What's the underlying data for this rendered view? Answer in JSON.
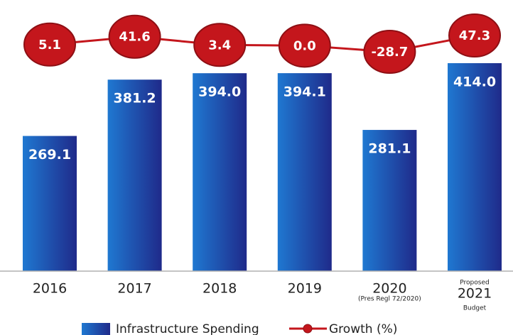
{
  "chart_data": {
    "type": "bar-line",
    "categories": [
      "2016",
      "2017",
      "2018",
      "2019",
      "2020",
      "2021"
    ],
    "annotations": [
      "(Pres Regl 72/2020)",
      "Proposed",
      "Budget"
    ],
    "series": [
      {
        "name": "Infrastructure Spending",
        "type": "bar",
        "color": "#1a4fb0",
        "values": [
          269.1,
          381.2,
          394.0,
          394.1,
          281.1,
          414.0
        ],
        "value_labels": [
          "269.1",
          "381.2",
          "394.0",
          "394.1",
          "281.1",
          "414.0"
        ]
      },
      {
        "name": "Growth (%)",
        "type": "line",
        "color": "#c4161c",
        "values": [
          5.1,
          41.6,
          3.4,
          0.0,
          -28.7,
          47.3
        ],
        "value_labels": [
          "5.1",
          "41.6",
          "3.4",
          "0.0",
          "-28.7",
          "47.3"
        ]
      }
    ]
  }
}
